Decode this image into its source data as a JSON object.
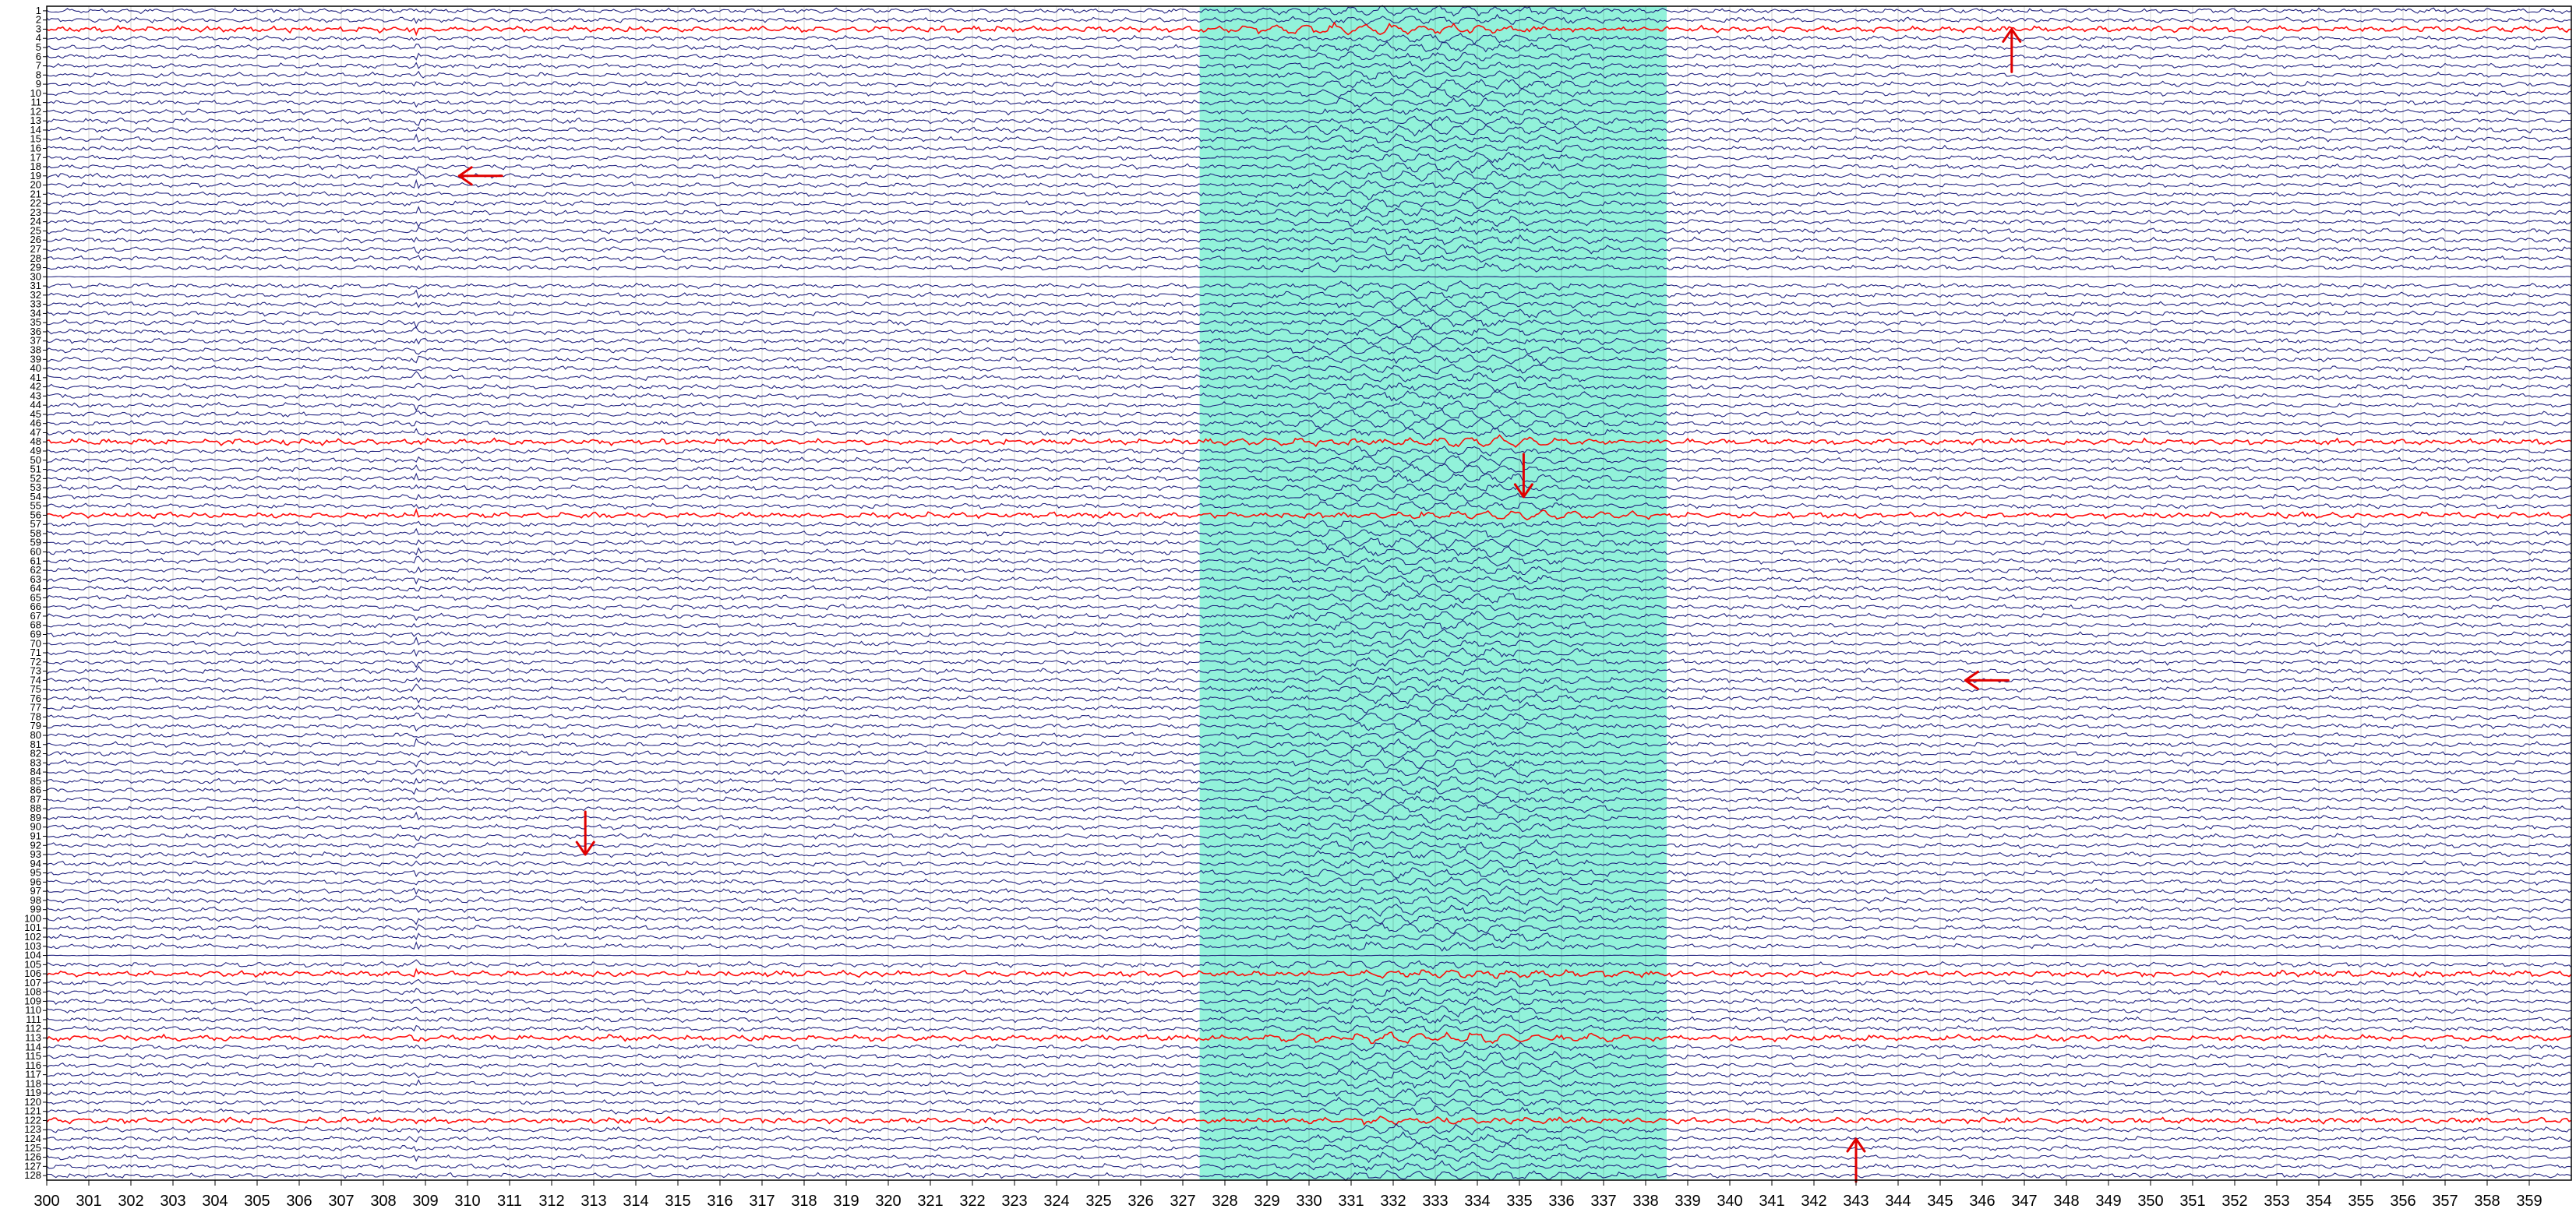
{
  "chart_data": {
    "type": "line",
    "x": {
      "min": 300,
      "max": 360,
      "ticks": [
        300,
        301,
        302,
        303,
        304,
        305,
        306,
        307,
        308,
        309,
        310,
        311,
        312,
        313,
        314,
        315,
        316,
        317,
        318,
        319,
        320,
        321,
        322,
        323,
        324,
        325,
        326,
        327,
        328,
        329,
        330,
        331,
        332,
        333,
        334,
        335,
        336,
        337,
        338,
        339,
        340,
        341,
        342,
        343,
        344,
        345,
        346,
        347,
        348,
        349,
        350,
        351,
        352,
        353,
        354,
        355,
        356,
        357,
        358,
        359
      ]
    },
    "channels": {
      "count": 128,
      "labels": [
        "1",
        "2",
        "3",
        "4",
        "5",
        "6",
        "7",
        "8",
        "9",
        "10",
        "11",
        "12",
        "13",
        "14",
        "15",
        "16",
        "17",
        "18",
        "19",
        "20",
        "21",
        "22",
        "23",
        "24",
        "25",
        "26",
        "27",
        "28",
        "29",
        "30",
        "31",
        "32",
        "33",
        "34",
        "35",
        "36",
        "37",
        "38",
        "39",
        "40",
        "41",
        "42",
        "43",
        "44",
        "45",
        "46",
        "47",
        "48",
        "49",
        "50",
        "51",
        "52",
        "53",
        "54",
        "55",
        "56",
        "57",
        "58",
        "59",
        "60",
        "61",
        "62",
        "63",
        "64",
        "65",
        "66",
        "67",
        "68",
        "69",
        "70",
        "71",
        "72",
        "73",
        "74",
        "75",
        "76",
        "77",
        "78",
        "79",
        "80",
        "81",
        "82",
        "83",
        "84",
        "85",
        "86",
        "87",
        "88",
        "89",
        "90",
        "91",
        "92",
        "93",
        "94",
        "95",
        "96",
        "97",
        "98",
        "99",
        "100",
        "101",
        "102",
        "103",
        "104",
        "105",
        "106",
        "107",
        "108",
        "109",
        "110",
        "111",
        "112",
        "113",
        "114",
        "115",
        "116",
        "117",
        "118",
        "119",
        "120",
        "121",
        "122",
        "123",
        "124",
        "125",
        "126",
        "127",
        "128"
      ],
      "highlighted_red": [
        3,
        48,
        56,
        106,
        113,
        122
      ],
      "flat_channels": [
        30,
        104
      ]
    },
    "highlight_region": {
      "start": 327.4,
      "end": 338.5,
      "color": "#7FF0D4"
    },
    "annotations": [
      {
        "type": "arrow",
        "x": 309.8,
        "channel": 19,
        "direction": "left"
      },
      {
        "type": "arrow",
        "x": 346.7,
        "channel": 3,
        "direction": "up"
      },
      {
        "type": "arrow",
        "x": 345.6,
        "channel": 74,
        "direction": "left"
      },
      {
        "type": "arrow",
        "x": 312.8,
        "channel": 93,
        "direction": "down"
      },
      {
        "type": "arrow",
        "x": 343.0,
        "channel": 124,
        "direction": "up"
      },
      {
        "type": "arrow",
        "x": 335.1,
        "channel": 54,
        "direction": "down"
      }
    ],
    "colors": {
      "trace": "#1a1a7a",
      "highlight_trace": "#ff0000",
      "annotation": "#e00000",
      "grid": "#000000",
      "region": "#7FF0D4"
    },
    "grid": true
  }
}
